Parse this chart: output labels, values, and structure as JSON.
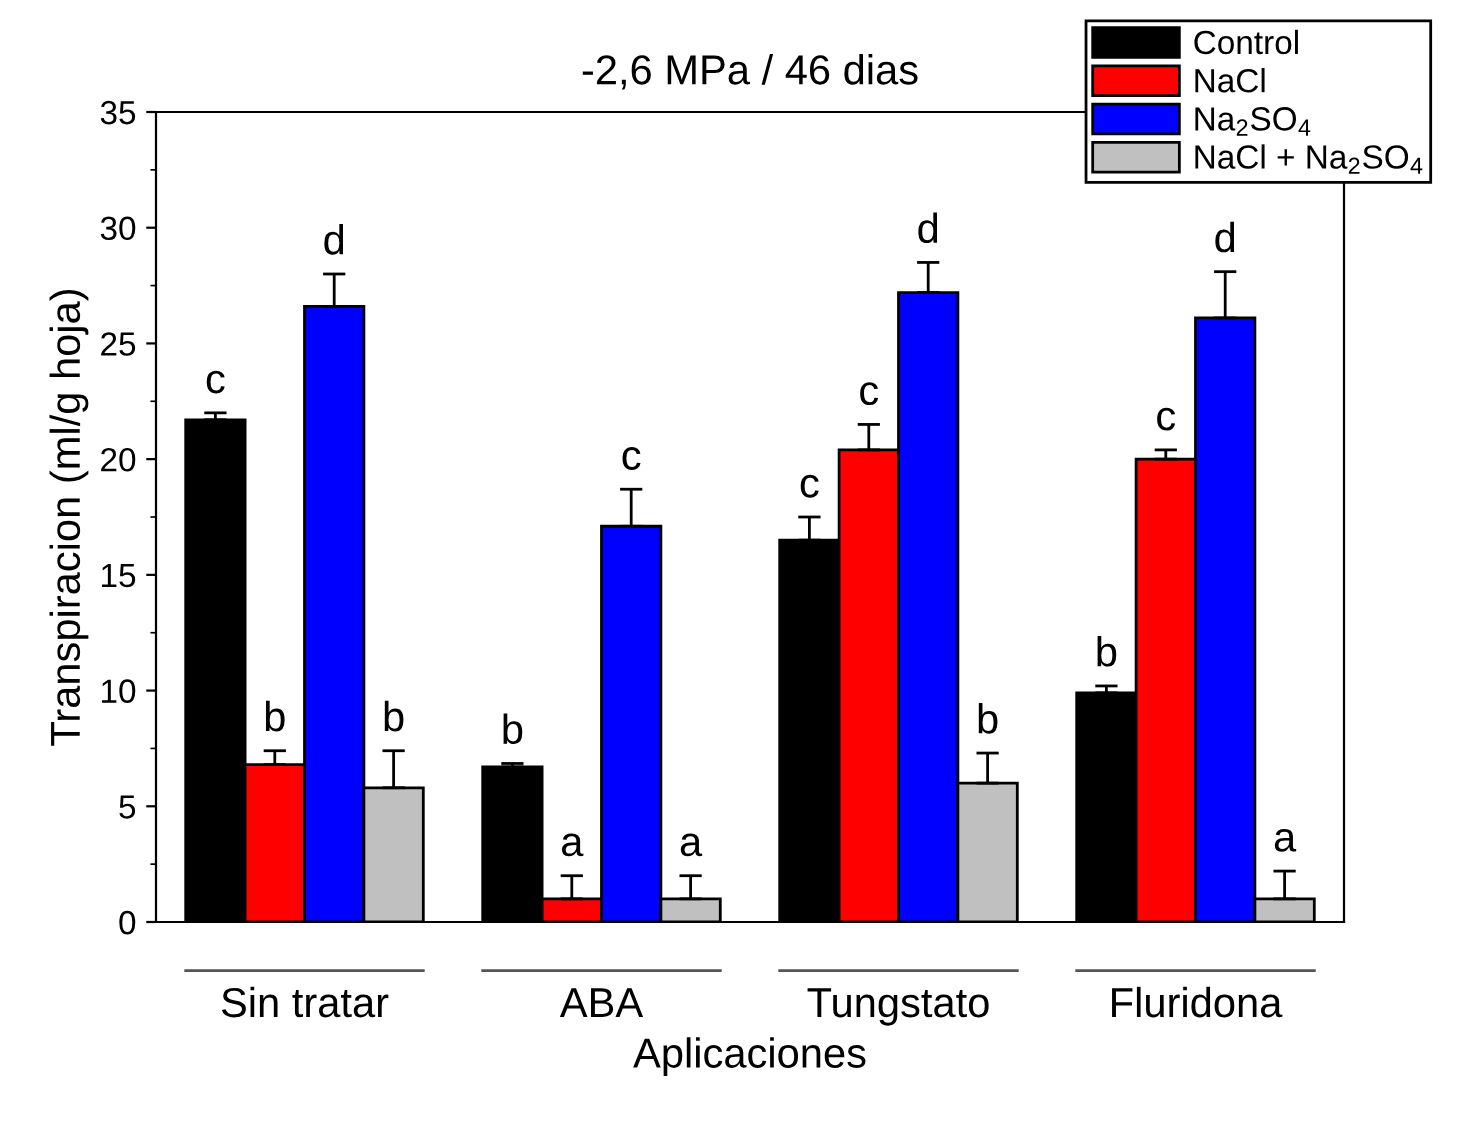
{
  "chart_data": {
    "type": "bar",
    "title": "-2,6 MPa / 46 dias",
    "xlabel": "Aplicaciones",
    "ylabel": "Transpiracion (ml/g hoja)",
    "categories": [
      "Sin tratar",
      "ABA",
      "Tungstato",
      "Fluridona"
    ],
    "series": [
      {
        "name": "Control",
        "color": "#000000",
        "values": [
          21.7,
          6.7,
          16.5,
          9.9
        ],
        "errors": [
          [
            21.7,
            22.0
          ],
          [
            6.7,
            6.85
          ],
          [
            16.5,
            17.5
          ],
          [
            9.9,
            10.2
          ]
        ],
        "value_labels": [
          "c",
          "b",
          "c",
          "b"
        ]
      },
      {
        "name": "NaCl",
        "color": "#ff0000",
        "values": [
          6.8,
          1.0,
          20.4,
          20.0
        ],
        "errors": [
          [
            6.8,
            7.4
          ],
          [
            1.0,
            2.0
          ],
          [
            20.4,
            21.5
          ],
          [
            20.0,
            20.4
          ]
        ],
        "value_labels": [
          "b",
          "a",
          "c",
          "c"
        ]
      },
      {
        "name": "Na$_{2}$SO$_{4}$",
        "color": "#0000ff",
        "values": [
          26.6,
          17.1,
          27.2,
          26.1
        ],
        "errors": [
          [
            26.6,
            28.0
          ],
          [
            17.1,
            18.7
          ],
          [
            27.2,
            28.5
          ],
          [
            26.1,
            28.1
          ]
        ],
        "value_labels": [
          "d",
          "c",
          "d",
          "d"
        ]
      },
      {
        "name": "NaCl + Na$_{2}$SO$_{4}$",
        "color": "#c0c0c0",
        "values": [
          5.8,
          1.0,
          6.0,
          1.0
        ],
        "errors": [
          [
            5.8,
            7.4
          ],
          [
            1.0,
            2.0
          ],
          [
            6.0,
            7.3
          ],
          [
            1.0,
            2.2
          ]
        ],
        "value_labels": [
          "b",
          "a",
          "b",
          "a"
        ]
      }
    ],
    "ylim": [
      0,
      35
    ],
    "yticks": [
      0,
      5,
      10,
      15,
      20,
      25,
      30,
      35
    ],
    "grid": false,
    "legend": "top right"
  }
}
